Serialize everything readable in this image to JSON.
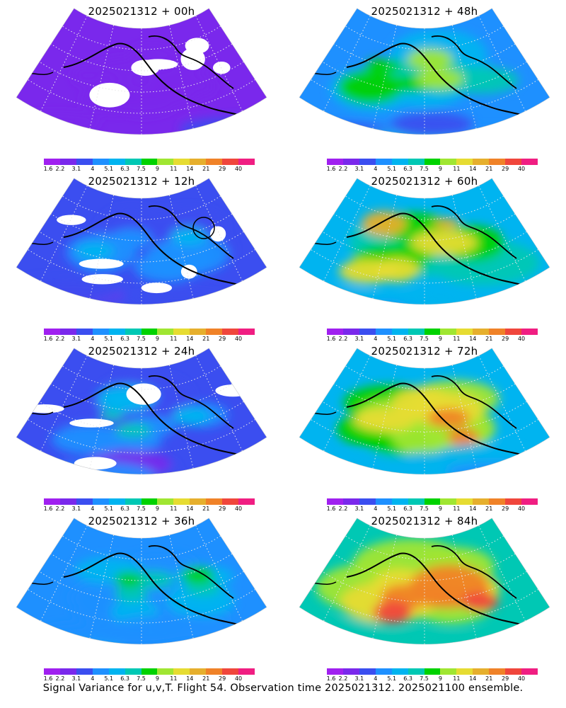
{
  "panels": [
    {
      "title": "2025021312 + 00h",
      "lead": "00h",
      "intensity": 0.15,
      "voids": true,
      "circle": false
    },
    {
      "title": "2025021312 + 48h",
      "lead": "48h",
      "intensity": 0.55,
      "voids": false,
      "circle": false
    },
    {
      "title": "2025021312 + 12h",
      "lead": "12h",
      "intensity": 0.28,
      "voids": true,
      "circle": true
    },
    {
      "title": "2025021312 + 60h",
      "lead": "60h",
      "intensity": 0.62,
      "voids": false,
      "circle": false
    },
    {
      "title": "2025021312 + 24h",
      "lead": "24h",
      "intensity": 0.38,
      "voids": true,
      "circle": false
    },
    {
      "title": "2025021312 + 72h",
      "lead": "72h",
      "intensity": 0.72,
      "voids": false,
      "circle": false
    },
    {
      "title": "2025021312 + 36h",
      "lead": "36h",
      "intensity": 0.42,
      "voids": false,
      "circle": false
    },
    {
      "title": "2025021312 + 84h",
      "lead": "84h",
      "intensity": 0.78,
      "voids": false,
      "circle": false
    }
  ],
  "colorbar": {
    "labels": [
      "1.6",
      "2.2",
      "3.1",
      "4",
      "5.1",
      "6.3",
      "7.5",
      "9",
      "11",
      "14",
      "21",
      "29",
      "40"
    ],
    "colors": [
      "#a020f0",
      "#7a28ec",
      "#3b4ef0",
      "#1e90ff",
      "#00b4f0",
      "#00c8b4",
      "#00d200",
      "#a0e632",
      "#e6dc32",
      "#e6af2d",
      "#f08228",
      "#f0463c",
      "#f01e82"
    ]
  },
  "footer": "Signal Variance for u,v,T. Flight 54. Observation time 2025021312. 2025021100 ensemble."
}
